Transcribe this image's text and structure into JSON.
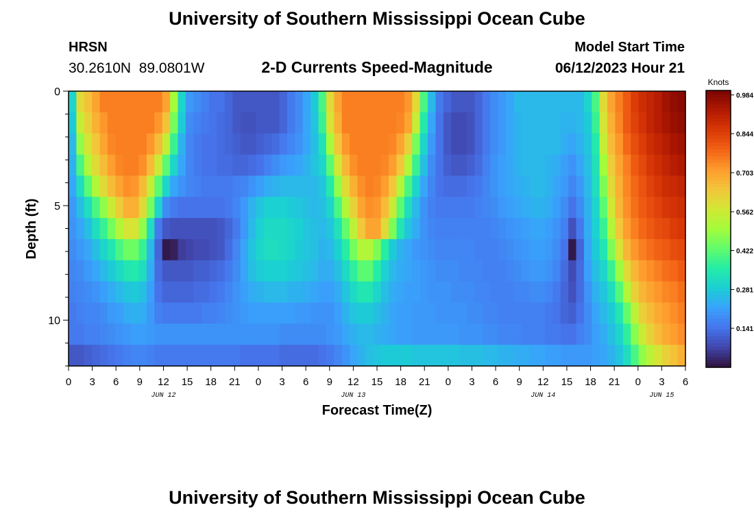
{
  "title": "University of Southern Mississippi Ocean Cube",
  "title_repeat": "University of Southern Mississippi Ocean Cube",
  "station": {
    "name": "HRSN",
    "coords": "30.2610N  89.0801W"
  },
  "subtitle": "2-D Currents Speed-Magnitude",
  "model_start": {
    "label": "Model Start Time",
    "value": "06/12/2023 Hour 21"
  },
  "colorbar": {
    "unit": "Knots",
    "ticks": [
      "0.984",
      "0.844",
      "0.703",
      "0.562",
      "0.422",
      "0.281",
      "0.141"
    ],
    "tick_values": [
      0.984,
      0.844,
      0.703,
      0.562,
      0.422,
      0.281,
      0.141
    ],
    "range": [
      0.0,
      1.0
    ]
  },
  "chart_data": {
    "type": "heatmap",
    "title": "2-D Currents Speed-Magnitude",
    "xlabel": "Forecast Time(Z)",
    "ylabel": "Depth (ft)",
    "x_tick_labels": [
      "0",
      "3",
      "6",
      "9",
      "12",
      "15",
      "18",
      "21",
      "0",
      "3",
      "6",
      "9",
      "12",
      "15",
      "18",
      "21",
      "0",
      "3",
      "6",
      "9",
      "12",
      "15",
      "18",
      "21",
      "0",
      "3",
      "6"
    ],
    "date_labels": [
      {
        "text": "JUN 12",
        "hour_index": 4
      },
      {
        "text": "JUN 13",
        "hour_index": 12
      },
      {
        "text": "JUN 14",
        "hour_index": 20
      },
      {
        "text": "JUN 15",
        "hour_index": 25
      }
    ],
    "y_tick_labels": [
      "0",
      "5",
      "10"
    ],
    "y_ticks_ft": [
      0,
      5,
      10
    ],
    "ylim": [
      0,
      12
    ],
    "x_range_hours": [
      0,
      78
    ],
    "speed_range_knots": [
      0,
      1
    ],
    "colormap": [
      "#30123b",
      "#4145ab",
      "#4675ed",
      "#39a2fc",
      "#1bcfd4",
      "#24eca6",
      "#61fc6c",
      "#a4fc3b",
      "#d1e834",
      "#f3c63a",
      "#fe9b2d",
      "#f36315",
      "#d93806",
      "#b11901",
      "#7a0402"
    ],
    "depths_ft": [
      0,
      1,
      2,
      3,
      4,
      5,
      6,
      7,
      8,
      9,
      10,
      11,
      12
    ],
    "speed_grid": [
      [
        0.3,
        0.6,
        0.65,
        0.7,
        0.75,
        0.75,
        0.75,
        0.75,
        0.75,
        0.75,
        0.75,
        0.75,
        0.7,
        0.5,
        0.3,
        0.2,
        0.18,
        0.16,
        0.14,
        0.14,
        0.12,
        0.1,
        0.1,
        0.1,
        0.1,
        0.1,
        0.1,
        0.12,
        0.15,
        0.18,
        0.22,
        0.28,
        0.4,
        0.6,
        0.7,
        0.75,
        0.75,
        0.75,
        0.75,
        0.75,
        0.75,
        0.75,
        0.75,
        0.72,
        0.6,
        0.4,
        0.25,
        0.15,
        0.12,
        0.1,
        0.1,
        0.1,
        0.12,
        0.15,
        0.18,
        0.2,
        0.22,
        0.25,
        0.25,
        0.25,
        0.25,
        0.25,
        0.25,
        0.25,
        0.25,
        0.25,
        0.3,
        0.4,
        0.6,
        0.7,
        0.75,
        0.8,
        0.85,
        0.88,
        0.9,
        0.92,
        0.95,
        0.97,
        0.98
      ],
      [
        0.28,
        0.55,
        0.62,
        0.68,
        0.72,
        0.75,
        0.75,
        0.75,
        0.75,
        0.75,
        0.75,
        0.72,
        0.65,
        0.45,
        0.28,
        0.18,
        0.16,
        0.15,
        0.14,
        0.13,
        0.12,
        0.1,
        0.09,
        0.09,
        0.1,
        0.1,
        0.1,
        0.12,
        0.15,
        0.18,
        0.22,
        0.27,
        0.38,
        0.58,
        0.68,
        0.75,
        0.75,
        0.75,
        0.75,
        0.75,
        0.75,
        0.75,
        0.74,
        0.7,
        0.55,
        0.35,
        0.22,
        0.14,
        0.1,
        0.08,
        0.08,
        0.09,
        0.12,
        0.15,
        0.18,
        0.2,
        0.22,
        0.24,
        0.25,
        0.25,
        0.25,
        0.25,
        0.25,
        0.24,
        0.24,
        0.25,
        0.28,
        0.38,
        0.58,
        0.68,
        0.74,
        0.8,
        0.84,
        0.87,
        0.9,
        0.92,
        0.94,
        0.96,
        0.97
      ],
      [
        0.25,
        0.48,
        0.58,
        0.64,
        0.7,
        0.74,
        0.75,
        0.75,
        0.75,
        0.75,
        0.72,
        0.66,
        0.55,
        0.38,
        0.24,
        0.17,
        0.15,
        0.14,
        0.14,
        0.13,
        0.12,
        0.11,
        0.1,
        0.1,
        0.11,
        0.12,
        0.13,
        0.15,
        0.17,
        0.19,
        0.22,
        0.26,
        0.33,
        0.5,
        0.64,
        0.72,
        0.75,
        0.75,
        0.75,
        0.75,
        0.75,
        0.74,
        0.7,
        0.62,
        0.45,
        0.3,
        0.2,
        0.14,
        0.1,
        0.08,
        0.08,
        0.09,
        0.12,
        0.15,
        0.18,
        0.2,
        0.22,
        0.24,
        0.25,
        0.25,
        0.25,
        0.25,
        0.25,
        0.23,
        0.22,
        0.24,
        0.27,
        0.35,
        0.55,
        0.66,
        0.72,
        0.78,
        0.82,
        0.85,
        0.88,
        0.9,
        0.92,
        0.94,
        0.95
      ],
      [
        0.24,
        0.4,
        0.52,
        0.6,
        0.66,
        0.71,
        0.74,
        0.75,
        0.75,
        0.73,
        0.66,
        0.56,
        0.42,
        0.3,
        0.22,
        0.17,
        0.15,
        0.14,
        0.14,
        0.13,
        0.13,
        0.12,
        0.12,
        0.13,
        0.14,
        0.16,
        0.18,
        0.2,
        0.21,
        0.22,
        0.24,
        0.27,
        0.3,
        0.42,
        0.57,
        0.67,
        0.73,
        0.75,
        0.75,
        0.75,
        0.74,
        0.71,
        0.64,
        0.52,
        0.38,
        0.26,
        0.18,
        0.14,
        0.11,
        0.1,
        0.1,
        0.11,
        0.13,
        0.16,
        0.19,
        0.21,
        0.22,
        0.24,
        0.25,
        0.25,
        0.25,
        0.24,
        0.23,
        0.21,
        0.19,
        0.22,
        0.26,
        0.33,
        0.5,
        0.63,
        0.7,
        0.75,
        0.8,
        0.83,
        0.86,
        0.88,
        0.9,
        0.92,
        0.93
      ],
      [
        0.22,
        0.32,
        0.42,
        0.52,
        0.6,
        0.66,
        0.7,
        0.73,
        0.72,
        0.66,
        0.55,
        0.42,
        0.3,
        0.22,
        0.19,
        0.17,
        0.16,
        0.15,
        0.15,
        0.15,
        0.15,
        0.16,
        0.17,
        0.19,
        0.21,
        0.23,
        0.24,
        0.25,
        0.25,
        0.25,
        0.25,
        0.25,
        0.27,
        0.35,
        0.48,
        0.6,
        0.68,
        0.73,
        0.75,
        0.74,
        0.71,
        0.64,
        0.52,
        0.4,
        0.3,
        0.22,
        0.17,
        0.14,
        0.13,
        0.13,
        0.13,
        0.14,
        0.15,
        0.17,
        0.19,
        0.21,
        0.22,
        0.23,
        0.24,
        0.25,
        0.25,
        0.24,
        0.22,
        0.2,
        0.17,
        0.2,
        0.25,
        0.32,
        0.46,
        0.6,
        0.68,
        0.74,
        0.78,
        0.81,
        0.84,
        0.86,
        0.88,
        0.89,
        0.9
      ],
      [
        0.2,
        0.26,
        0.32,
        0.4,
        0.48,
        0.56,
        0.63,
        0.68,
        0.68,
        0.6,
        0.45,
        0.3,
        0.18,
        0.15,
        0.14,
        0.14,
        0.14,
        0.14,
        0.14,
        0.14,
        0.15,
        0.17,
        0.2,
        0.24,
        0.27,
        0.29,
        0.29,
        0.29,
        0.28,
        0.27,
        0.26,
        0.25,
        0.26,
        0.3,
        0.4,
        0.52,
        0.62,
        0.7,
        0.73,
        0.72,
        0.66,
        0.56,
        0.42,
        0.32,
        0.25,
        0.19,
        0.16,
        0.15,
        0.15,
        0.15,
        0.15,
        0.15,
        0.16,
        0.17,
        0.18,
        0.2,
        0.21,
        0.22,
        0.23,
        0.24,
        0.24,
        0.23,
        0.21,
        0.18,
        0.14,
        0.18,
        0.24,
        0.3,
        0.42,
        0.57,
        0.67,
        0.73,
        0.77,
        0.8,
        0.82,
        0.84,
        0.86,
        0.87,
        0.88
      ],
      [
        0.19,
        0.22,
        0.26,
        0.32,
        0.38,
        0.45,
        0.52,
        0.58,
        0.58,
        0.48,
        0.32,
        0.15,
        0.1,
        0.09,
        0.09,
        0.09,
        0.09,
        0.09,
        0.09,
        0.1,
        0.12,
        0.15,
        0.2,
        0.25,
        0.29,
        0.31,
        0.31,
        0.31,
        0.3,
        0.29,
        0.27,
        0.26,
        0.25,
        0.27,
        0.33,
        0.43,
        0.54,
        0.64,
        0.7,
        0.7,
        0.6,
        0.46,
        0.34,
        0.27,
        0.23,
        0.19,
        0.17,
        0.16,
        0.16,
        0.16,
        0.16,
        0.16,
        0.16,
        0.16,
        0.17,
        0.18,
        0.19,
        0.2,
        0.21,
        0.22,
        0.22,
        0.21,
        0.19,
        0.16,
        0.09,
        0.15,
        0.23,
        0.29,
        0.38,
        0.52,
        0.64,
        0.71,
        0.75,
        0.78,
        0.8,
        0.82,
        0.83,
        0.85,
        0.86
      ],
      [
        0.18,
        0.2,
        0.22,
        0.26,
        0.3,
        0.34,
        0.4,
        0.44,
        0.44,
        0.38,
        0.25,
        0.12,
        0.01,
        0.02,
        0.06,
        0.07,
        0.08,
        0.08,
        0.09,
        0.1,
        0.13,
        0.17,
        0.22,
        0.27,
        0.3,
        0.32,
        0.32,
        0.31,
        0.3,
        0.28,
        0.27,
        0.26,
        0.24,
        0.25,
        0.29,
        0.36,
        0.45,
        0.52,
        0.52,
        0.46,
        0.36,
        0.28,
        0.24,
        0.22,
        0.2,
        0.19,
        0.18,
        0.17,
        0.17,
        0.17,
        0.17,
        0.17,
        0.16,
        0.16,
        0.16,
        0.17,
        0.18,
        0.19,
        0.2,
        0.21,
        0.21,
        0.2,
        0.18,
        0.14,
        0.01,
        0.12,
        0.22,
        0.28,
        0.34,
        0.46,
        0.58,
        0.67,
        0.72,
        0.75,
        0.77,
        0.79,
        0.8,
        0.82,
        0.83
      ],
      [
        0.17,
        0.18,
        0.2,
        0.22,
        0.25,
        0.28,
        0.31,
        0.34,
        0.35,
        0.32,
        0.23,
        0.13,
        0.1,
        0.1,
        0.1,
        0.1,
        0.11,
        0.11,
        0.12,
        0.13,
        0.15,
        0.18,
        0.22,
        0.26,
        0.28,
        0.29,
        0.29,
        0.29,
        0.28,
        0.27,
        0.26,
        0.25,
        0.23,
        0.23,
        0.26,
        0.31,
        0.37,
        0.42,
        0.42,
        0.36,
        0.29,
        0.25,
        0.23,
        0.22,
        0.21,
        0.2,
        0.19,
        0.18,
        0.18,
        0.18,
        0.17,
        0.17,
        0.17,
        0.16,
        0.16,
        0.16,
        0.17,
        0.18,
        0.19,
        0.2,
        0.2,
        0.19,
        0.17,
        0.13,
        0.08,
        0.13,
        0.21,
        0.26,
        0.3,
        0.38,
        0.49,
        0.6,
        0.67,
        0.71,
        0.73,
        0.75,
        0.77,
        0.78,
        0.8
      ],
      [
        0.16,
        0.17,
        0.18,
        0.19,
        0.21,
        0.23,
        0.25,
        0.27,
        0.28,
        0.26,
        0.21,
        0.14,
        0.12,
        0.12,
        0.12,
        0.12,
        0.13,
        0.13,
        0.14,
        0.15,
        0.17,
        0.19,
        0.21,
        0.23,
        0.24,
        0.25,
        0.25,
        0.25,
        0.24,
        0.24,
        0.23,
        0.22,
        0.21,
        0.21,
        0.23,
        0.27,
        0.31,
        0.34,
        0.34,
        0.3,
        0.26,
        0.23,
        0.22,
        0.21,
        0.21,
        0.2,
        0.19,
        0.19,
        0.19,
        0.18,
        0.18,
        0.18,
        0.17,
        0.17,
        0.16,
        0.16,
        0.16,
        0.17,
        0.17,
        0.18,
        0.18,
        0.17,
        0.15,
        0.12,
        0.09,
        0.13,
        0.19,
        0.24,
        0.27,
        0.32,
        0.41,
        0.52,
        0.62,
        0.67,
        0.7,
        0.72,
        0.74,
        0.75,
        0.77
      ],
      [
        0.15,
        0.16,
        0.17,
        0.17,
        0.18,
        0.2,
        0.21,
        0.23,
        0.24,
        0.23,
        0.2,
        0.16,
        0.15,
        0.15,
        0.15,
        0.15,
        0.15,
        0.16,
        0.16,
        0.17,
        0.18,
        0.19,
        0.2,
        0.21,
        0.21,
        0.21,
        0.21,
        0.21,
        0.21,
        0.2,
        0.2,
        0.19,
        0.19,
        0.19,
        0.21,
        0.24,
        0.27,
        0.28,
        0.28,
        0.26,
        0.24,
        0.22,
        0.21,
        0.21,
        0.2,
        0.2,
        0.2,
        0.19,
        0.19,
        0.19,
        0.19,
        0.18,
        0.18,
        0.17,
        0.17,
        0.16,
        0.16,
        0.16,
        0.16,
        0.16,
        0.16,
        0.15,
        0.14,
        0.12,
        0.11,
        0.14,
        0.18,
        0.22,
        0.25,
        0.28,
        0.34,
        0.43,
        0.54,
        0.62,
        0.66,
        0.69,
        0.71,
        0.73,
        0.75
      ],
      [
        0.15,
        0.15,
        0.16,
        0.16,
        0.17,
        0.18,
        0.19,
        0.2,
        0.21,
        0.21,
        0.2,
        0.19,
        0.19,
        0.19,
        0.19,
        0.19,
        0.19,
        0.19,
        0.19,
        0.19,
        0.19,
        0.19,
        0.19,
        0.19,
        0.19,
        0.19,
        0.19,
        0.18,
        0.18,
        0.18,
        0.18,
        0.18,
        0.18,
        0.19,
        0.2,
        0.22,
        0.24,
        0.25,
        0.25,
        0.24,
        0.23,
        0.22,
        0.21,
        0.21,
        0.2,
        0.2,
        0.2,
        0.2,
        0.2,
        0.2,
        0.19,
        0.19,
        0.19,
        0.18,
        0.18,
        0.17,
        0.17,
        0.17,
        0.16,
        0.16,
        0.16,
        0.15,
        0.15,
        0.14,
        0.14,
        0.16,
        0.18,
        0.21,
        0.23,
        0.26,
        0.3,
        0.37,
        0.47,
        0.56,
        0.62,
        0.66,
        0.69,
        0.71,
        0.73
      ],
      [
        0.1,
        0.1,
        0.11,
        0.12,
        0.13,
        0.14,
        0.15,
        0.16,
        0.17,
        0.17,
        0.16,
        0.15,
        0.15,
        0.15,
        0.15,
        0.15,
        0.15,
        0.15,
        0.15,
        0.15,
        0.15,
        0.15,
        0.14,
        0.14,
        0.14,
        0.14,
        0.14,
        0.13,
        0.13,
        0.13,
        0.13,
        0.13,
        0.14,
        0.15,
        0.17,
        0.19,
        0.22,
        0.24,
        0.26,
        0.27,
        0.28,
        0.28,
        0.28,
        0.28,
        0.27,
        0.27,
        0.27,
        0.27,
        0.27,
        0.27,
        0.26,
        0.26,
        0.26,
        0.25,
        0.25,
        0.24,
        0.24,
        0.23,
        0.23,
        0.22,
        0.22,
        0.21,
        0.21,
        0.2,
        0.2,
        0.2,
        0.2,
        0.21,
        0.22,
        0.24,
        0.27,
        0.32,
        0.4,
        0.48,
        0.54,
        0.58,
        0.62,
        0.65,
        0.68
      ]
    ]
  }
}
